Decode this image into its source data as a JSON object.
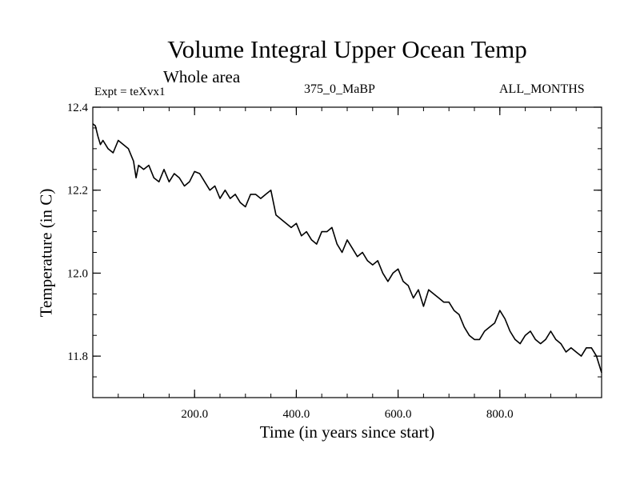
{
  "chart_data": {
    "type": "line",
    "title": "Volume Integral Upper Ocean Temp",
    "subtitle": "Whole area",
    "experiment_label": "Expt = teXvx1",
    "case_label": "375_0_MaBP",
    "period_label": "ALL_MONTHS",
    "xlabel": "Time (in years since start)",
    "ylabel": "Temperature (in C)",
    "xlim": [
      0,
      1000
    ],
    "ylim": [
      11.7,
      12.4
    ],
    "xticks": [
      {
        "value": 200,
        "label": "200.0"
      },
      {
        "value": 400,
        "label": "400.0"
      },
      {
        "value": 600,
        "label": "600.0"
      },
      {
        "value": 800,
        "label": "800.0"
      }
    ],
    "yticks": [
      {
        "value": 11.8,
        "label": "11.8"
      },
      {
        "value": 12.0,
        "label": "12.0"
      },
      {
        "value": 12.2,
        "label": "12.2"
      },
      {
        "value": 12.4,
        "label": "12.4"
      }
    ],
    "minor_xtick_step": 50,
    "minor_ytick_step": 0.05,
    "series": [
      {
        "name": "teXvx1",
        "color": "#000000",
        "x": [
          0,
          5,
          10,
          15,
          20,
          30,
          40,
          50,
          60,
          70,
          80,
          85,
          90,
          100,
          110,
          120,
          130,
          140,
          150,
          160,
          170,
          180,
          190,
          200,
          210,
          220,
          230,
          240,
          250,
          260,
          270,
          280,
          290,
          300,
          310,
          320,
          330,
          340,
          350,
          360,
          370,
          380,
          390,
          400,
          410,
          420,
          430,
          440,
          450,
          460,
          470,
          480,
          490,
          500,
          510,
          520,
          530,
          540,
          550,
          560,
          570,
          580,
          590,
          600,
          610,
          620,
          630,
          640,
          650,
          660,
          670,
          680,
          690,
          700,
          710,
          720,
          730,
          740,
          750,
          760,
          770,
          780,
          790,
          800,
          810,
          820,
          830,
          840,
          850,
          860,
          870,
          880,
          890,
          900,
          910,
          920,
          930,
          940,
          950,
          960,
          970,
          980,
          990,
          1000
        ],
        "values": [
          12.36,
          12.355,
          12.33,
          12.31,
          12.32,
          12.3,
          12.29,
          12.32,
          12.31,
          12.3,
          12.27,
          12.23,
          12.26,
          12.25,
          12.26,
          12.23,
          12.22,
          12.25,
          12.22,
          12.24,
          12.23,
          12.21,
          12.22,
          12.245,
          12.24,
          12.22,
          12.2,
          12.21,
          12.18,
          12.2,
          12.18,
          12.19,
          12.17,
          12.16,
          12.19,
          12.19,
          12.18,
          12.19,
          12.2,
          12.14,
          12.13,
          12.12,
          12.11,
          12.12,
          12.09,
          12.1,
          12.08,
          12.07,
          12.1,
          12.1,
          12.11,
          12.07,
          12.05,
          12.08,
          12.06,
          12.04,
          12.05,
          12.03,
          12.02,
          12.03,
          12.0,
          11.98,
          12.0,
          12.01,
          11.98,
          11.97,
          11.94,
          11.96,
          11.92,
          11.96,
          11.95,
          11.94,
          11.93,
          11.93,
          11.91,
          11.9,
          11.87,
          11.85,
          11.84,
          11.84,
          11.86,
          11.87,
          11.88,
          11.91,
          11.89,
          11.86,
          11.84,
          11.83,
          11.85,
          11.86,
          11.84,
          11.83,
          11.84,
          11.86,
          11.84,
          11.83,
          11.81,
          11.82,
          11.81,
          11.8,
          11.82,
          11.82,
          11.8,
          11.76
        ]
      }
    ]
  }
}
